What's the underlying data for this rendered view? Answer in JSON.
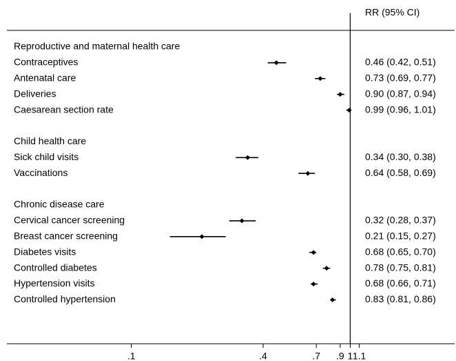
{
  "chart_data": {
    "type": "forest",
    "column_header": "RR (95% CI)",
    "groups": [
      {
        "name": "Reproductive and maternal health care",
        "categories": [
          "Contraceptives",
          "Antenatal care",
          "Deliveries",
          "Caesarean section rate"
        ],
        "values": [
          0.46,
          0.73,
          0.9,
          0.99
        ],
        "lower": [
          0.42,
          0.69,
          0.87,
          0.96
        ],
        "upper": [
          0.51,
          0.77,
          0.94,
          1.01
        ],
        "value_labels": [
          "0.46 (0.42, 0.51)",
          "0.73 (0.69, 0.77)",
          "0.90 (0.87, 0.94)",
          "0.99 (0.96, 1.01)"
        ]
      },
      {
        "name": "Child health care",
        "categories": [
          "Sick child visits",
          "Vaccinations"
        ],
        "values": [
          0.34,
          0.64
        ],
        "lower": [
          0.3,
          0.58
        ],
        "upper": [
          0.38,
          0.69
        ],
        "value_labels": [
          "0.34 (0.30, 0.38)",
          "0.64 (0.58, 0.69)"
        ]
      },
      {
        "name": "Chronic disease care",
        "categories": [
          "Cervical cancer screening",
          "Breast cancer screening",
          "Diabetes visits",
          "Controlled diabetes",
          "Hypertension visits",
          "Controlled hypertension"
        ],
        "values": [
          0.32,
          0.21,
          0.68,
          0.78,
          0.68,
          0.83
        ],
        "lower": [
          0.28,
          0.15,
          0.65,
          0.75,
          0.66,
          0.81
        ],
        "upper": [
          0.37,
          0.27,
          0.7,
          0.81,
          0.71,
          0.86
        ],
        "value_labels": [
          "0.32 (0.28, 0.37)",
          "0.21 (0.15, 0.27)",
          "0.68 (0.65, 0.70)",
          "0.78 (0.75, 0.81)",
          "0.68 (0.66, 0.71)",
          "0.83 (0.81, 0.86)"
        ]
      }
    ],
    "reference_line": 1,
    "xscale": "log",
    "xlim": [
      0.027,
      3.0
    ],
    "xticks": [
      {
        "value": 0.1,
        "label": ".1"
      },
      {
        "value": 0.4,
        "label": ".4"
      },
      {
        "value": 0.7,
        "label": ".7"
      },
      {
        "value": 0.9,
        "label": ".9"
      },
      1,
      1.1
    ],
    "color": "#000000"
  }
}
